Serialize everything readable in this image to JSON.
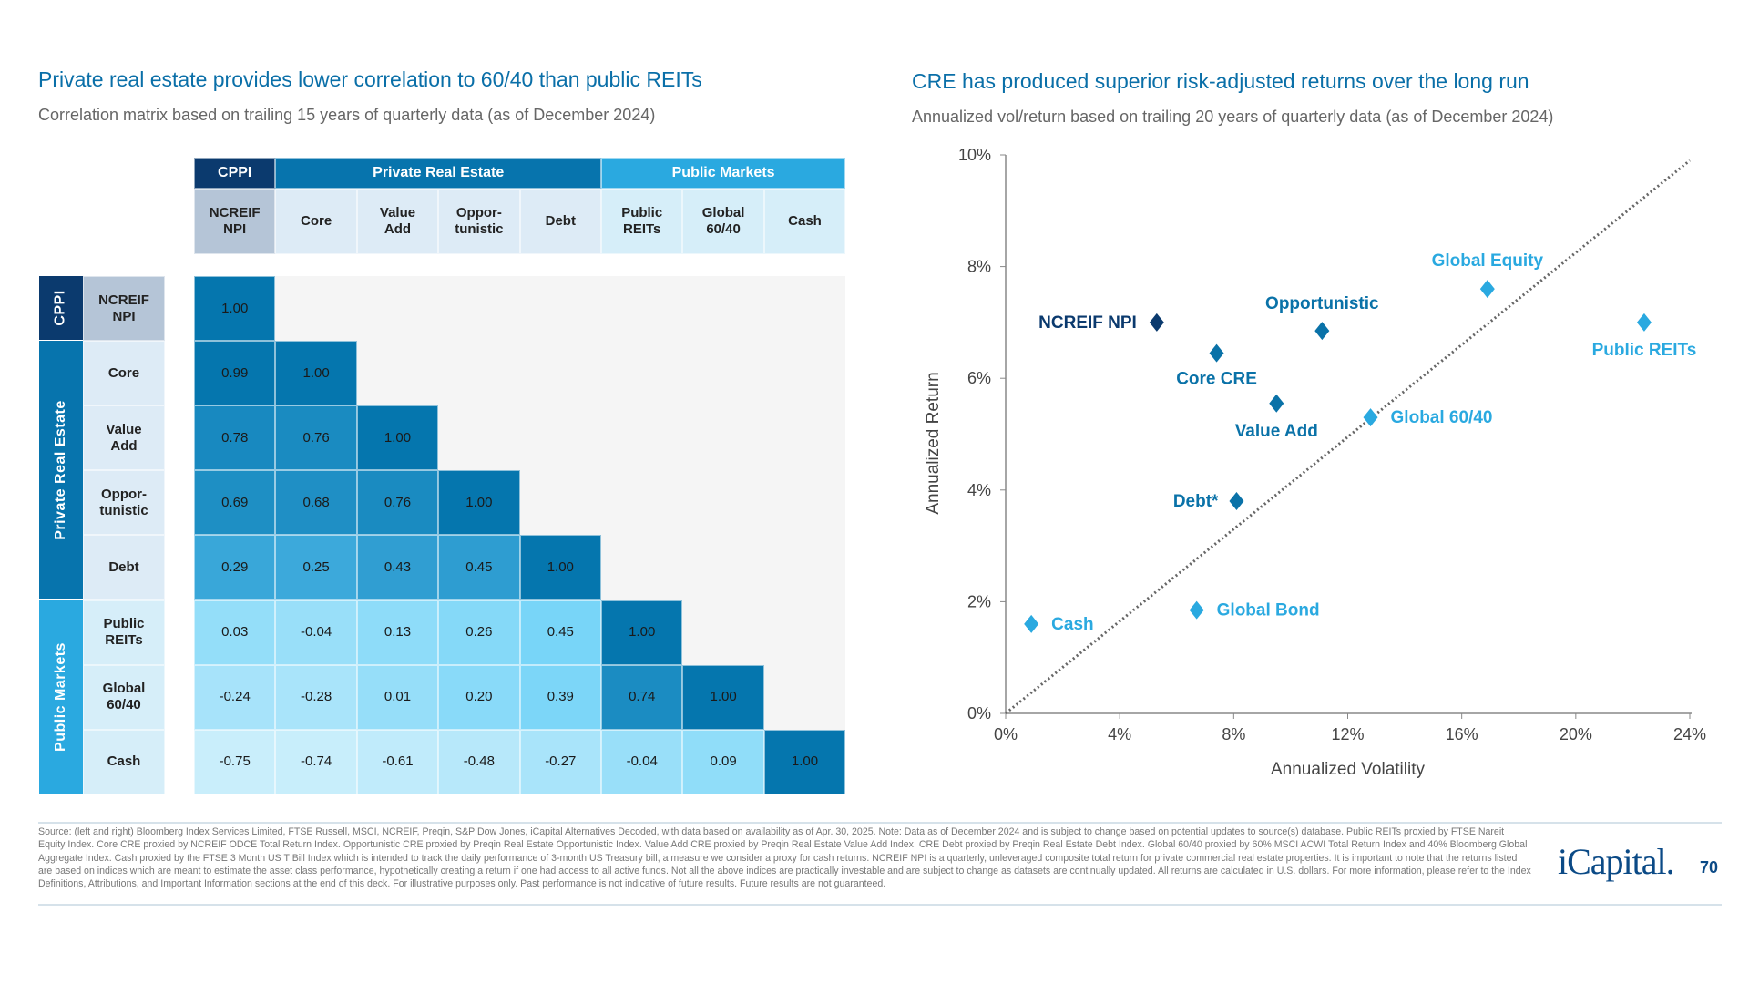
{
  "left": {
    "title": "Private real estate provides lower correlation to 60/40 than public REITs",
    "subtitle": "Correlation matrix based on trailing 15 years of quarterly data (as of December 2024)",
    "groups": [
      {
        "label": "CPPI",
        "color": "#0b3a6e"
      },
      {
        "label": "Private Real Estate",
        "color": "#0774ad"
      },
      {
        "label": "Public Markets",
        "color": "#2aa9e0"
      }
    ],
    "columns": [
      "NCREIF NPI",
      "Core",
      "Value Add",
      "Oppor-tunistic",
      "Debt",
      "Public REITs",
      "Global 60/40",
      "Cash"
    ],
    "rows": [
      {
        "label": "NCREIF NPI",
        "values": [
          "1.00"
        ]
      },
      {
        "label": "Core",
        "values": [
          "0.99",
          "1.00"
        ]
      },
      {
        "label": "Value Add",
        "values": [
          "0.78",
          "0.76",
          "1.00"
        ]
      },
      {
        "label": "Oppor-tunistic",
        "values": [
          "0.69",
          "0.68",
          "0.76",
          "1.00"
        ]
      },
      {
        "label": "Debt",
        "values": [
          "0.29",
          "0.25",
          "0.43",
          "0.45",
          "1.00"
        ]
      },
      {
        "label": "Public REITs",
        "values": [
          "0.03",
          "-0.04",
          "0.13",
          "0.26",
          "0.45",
          "1.00"
        ]
      },
      {
        "label": "Global 60/40",
        "values": [
          "-0.24",
          "-0.28",
          "0.01",
          "0.20",
          "0.39",
          "0.74",
          "1.00"
        ]
      },
      {
        "label": "Cash",
        "values": [
          "-0.75",
          "-0.74",
          "-0.61",
          "-0.48",
          "-0.27",
          "-0.04",
          "0.09",
          "1.00"
        ]
      }
    ]
  },
  "chart_data": {
    "type": "scatter",
    "title": "CRE has produced superior risk-adjusted returns over the long run",
    "subtitle": "Annualized vol/return based on trailing 20 years of quarterly data (as of December 2024)",
    "xlabel": "Annualized Volatility",
    "ylabel": "Annualized Return",
    "xlim": [
      0,
      24
    ],
    "ylim": [
      0,
      10
    ],
    "xticks": [
      "0%",
      "4%",
      "8%",
      "12%",
      "16%",
      "20%",
      "24%"
    ],
    "yticks": [
      "0%",
      "2%",
      "4%",
      "6%",
      "8%",
      "10%"
    ],
    "grid": false,
    "reference_line": {
      "style": "dotted",
      "from": [
        0,
        0
      ],
      "to": [
        24,
        9.9
      ]
    },
    "points": [
      {
        "name": "NCREIF NPI",
        "x": 5.3,
        "y": 7.0,
        "color": "#0b3a6e"
      },
      {
        "name": "Core CRE",
        "x": 7.4,
        "y": 6.45,
        "color": "#0a72a8"
      },
      {
        "name": "Opportunistic",
        "x": 11.1,
        "y": 6.85,
        "color": "#0a72a8"
      },
      {
        "name": "Value Add",
        "x": 9.5,
        "y": 5.55,
        "color": "#0a72a8"
      },
      {
        "name": "Debt*",
        "x": 8.1,
        "y": 3.8,
        "color": "#0a72a8"
      },
      {
        "name": "Global Equity",
        "x": 16.9,
        "y": 7.6,
        "color": "#2aa9e0"
      },
      {
        "name": "Public REITs",
        "x": 22.4,
        "y": 7.0,
        "color": "#2aa9e0"
      },
      {
        "name": "Global 60/40",
        "x": 12.8,
        "y": 5.3,
        "color": "#2aa9e0"
      },
      {
        "name": "Cash",
        "x": 0.9,
        "y": 1.6,
        "color": "#2aa9e0"
      },
      {
        "name": "Global Bond",
        "x": 6.7,
        "y": 1.85,
        "color": "#2aa9e0"
      }
    ]
  },
  "footer": {
    "source": "Source: (left and right) Bloomberg Index Services Limited, FTSE Russell, MSCI, NCREIF, Preqin, S&P Dow Jones, iCapital Alternatives Decoded, with data based on availability as of Apr. 30, 2025. Note: Data as of December 2024 and is subject to change based on potential updates to source(s) database. Public REITs proxied by FTSE Nareit Equity Index. Core CRE proxied by NCREIF ODCE Total Return Index. Opportunistic CRE proxied by Preqin Real Estate Opportunistic Index. Value Add CRE proxied by Preqin Real Estate Value Add Index. CRE Debt proxied by Preqin Real Estate Debt Index. Global 60/40 proxied by 60% MSCI ACWI Total Return Index and 40% Bloomberg Global Aggregate Index. Cash proxied by the FTSE 3 Month US T Bill Index which is intended to track the daily performance of 3-month US Treasury bill, a measure we consider a proxy for cash returns. NCREIF NPI is a quarterly, unleveraged composite total return for private commercial real estate properties. It is important to note that the returns listed are based on indices which are meant to estimate the asset class performance, hypothetically creating a return if one had access to all active funds. Not all the above indices are practically investable and are subject to change as datasets are continually updated. All returns are calculated in U.S. dollars. For more information, please refer to the Index Definitions, Attributions, and Important Information sections at the end of this deck. For illustrative purposes only. Past performance is not indicative of future results. Future results are not guaranteed.",
    "logo": "iCapital.",
    "page_number": "70"
  }
}
